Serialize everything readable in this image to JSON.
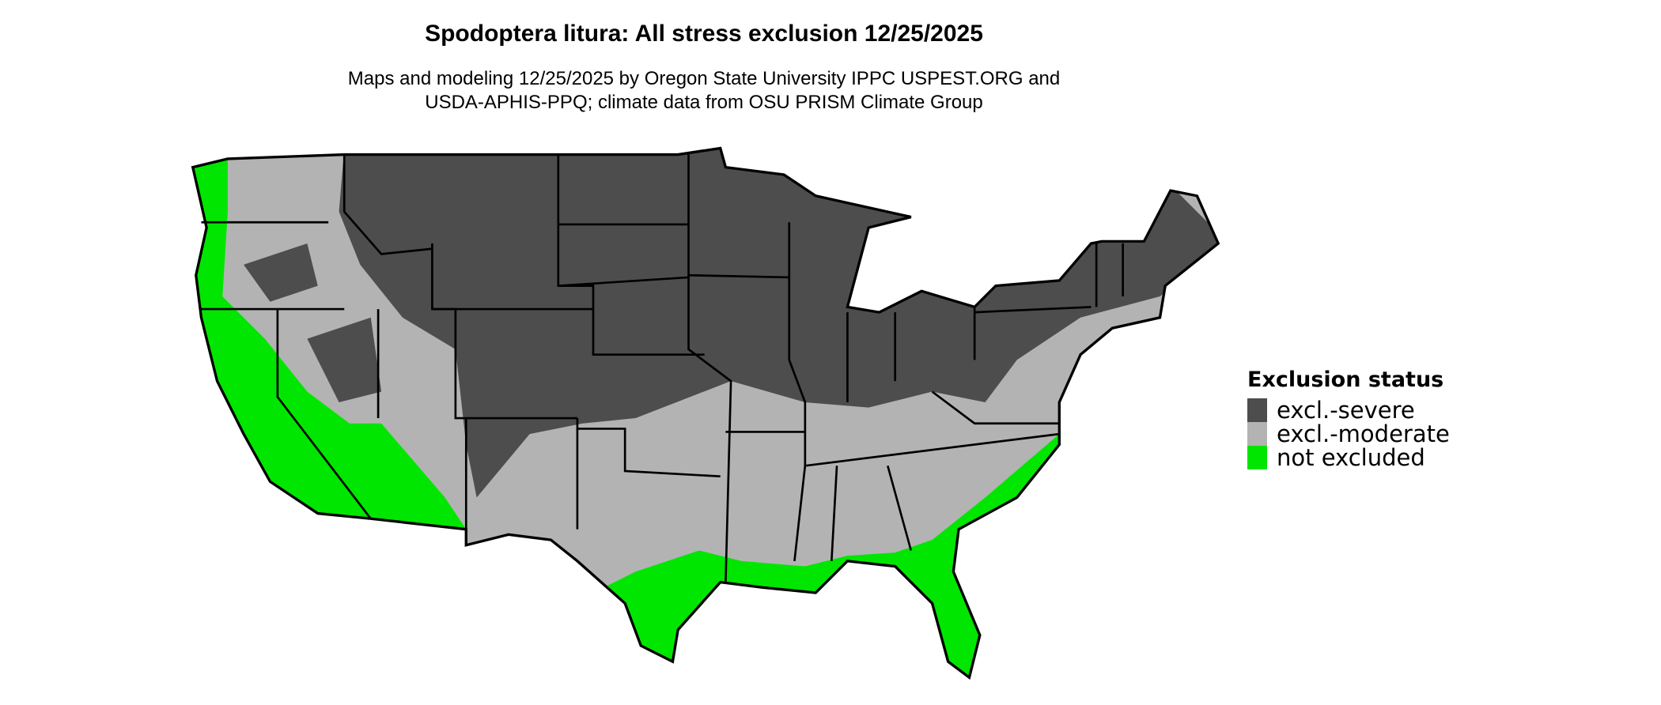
{
  "title": "Spodoptera litura: All stress exclusion 12/25/2025",
  "subtitle": {
    "line1": "Maps and modeling 12/25/2025 by Oregon State University IPPC USPEST.ORG and",
    "line2": "USDA-APHIS-PPQ; climate data from OSU PRISM Climate Group"
  },
  "map": {
    "region": "Contiguous United States",
    "colors": {
      "severe": "#4d4d4d",
      "moderate": "#b3b3b3",
      "not_excluded": "#00e600",
      "border": "#000000"
    }
  },
  "legend": {
    "title": "Exclusion status",
    "items": [
      {
        "label": "excl.-severe",
        "color": "#4d4d4d"
      },
      {
        "label": "excl.-moderate",
        "color": "#b3b3b3"
      },
      {
        "label": "not excluded",
        "color": "#00e600"
      }
    ]
  }
}
